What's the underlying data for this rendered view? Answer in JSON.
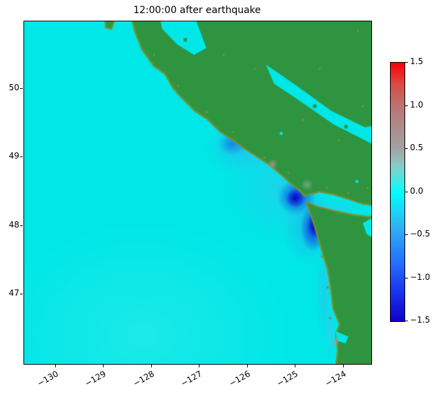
{
  "figure": {
    "title": "12:00:00 after earthquake"
  },
  "x_axis": {
    "tick_labels": [
      "−130",
      "−129",
      "−128",
      "−127",
      "−126",
      "−125",
      "−124"
    ],
    "tick_values": [
      -130,
      -129,
      -128,
      -127,
      -126,
      -125,
      -124
    ]
  },
  "y_axis": {
    "tick_labels": [
      "50",
      "49",
      "48",
      "47"
    ],
    "tick_values": [
      50,
      49,
      48,
      47
    ]
  },
  "colorbar": {
    "tick_labels": [
      "1.5",
      "1.0",
      "0.5",
      "0.0",
      "−0.5",
      "−1.0",
      "−1.5"
    ],
    "tick_values": [
      1.5,
      1.0,
      0.5,
      0.0,
      -0.5,
      -1.0,
      -1.5
    ],
    "vmin": -1.5,
    "vmax": 1.5,
    "gradient": [
      {
        "value": 1.5,
        "color": "#fb0007"
      },
      {
        "value": 1.25,
        "color": "#d94b43"
      },
      {
        "value": 1.0,
        "color": "#bb7470"
      },
      {
        "value": 0.75,
        "color": "#ac8d8b"
      },
      {
        "value": 0.5,
        "color": "#a2a2a2"
      },
      {
        "value": 0.3,
        "color": "#87cdc6"
      },
      {
        "value": 0.12,
        "color": "#3eeae6"
      },
      {
        "value": 0.0,
        "color": "#00ffff"
      },
      {
        "value": -0.4,
        "color": "#2fb3f3"
      },
      {
        "value": -0.8,
        "color": "#2472ff"
      },
      {
        "value": -1.15,
        "color": "#1b35ee"
      },
      {
        "value": -1.5,
        "color": "#0e00cc"
      }
    ]
  },
  "chart_data": {
    "type": "heatmap",
    "title": "12:00:00 after earthquake",
    "description": "Map of sea-surface elevation field along the Pacific Northwest coast (Vancouver Island and Washington): cyan ocean near 0, blue negative troughs hugging the coast and strait entrance, green land mask. Colorbar range −1.5 to 1.5.",
    "x_range": [
      -130.66,
      -123.42
    ],
    "y_range": [
      45.98,
      50.99
    ],
    "value_range": [
      -1.5,
      1.5
    ],
    "x_tick_values": [
      -130,
      -129,
      -128,
      -127,
      -126,
      -125,
      -124
    ],
    "y_tick_values": [
      50,
      49,
      48,
      47
    ],
    "colors": {
      "ocean": "#00e7e7",
      "land": "#2f9440",
      "coast": "#7d8f29",
      "channel_water": "#00e7e7"
    },
    "land_polygons": [
      {
        "name": "vancouver-island-and-mainland",
        "points": [
          [
            -128.52,
            51.3
          ],
          [
            -128.34,
            50.82
          ],
          [
            -128.2,
            50.58
          ],
          [
            -127.96,
            50.34
          ],
          [
            -127.72,
            50.22
          ],
          [
            -127.56,
            50.02
          ],
          [
            -127.44,
            49.92
          ],
          [
            -127.1,
            49.68
          ],
          [
            -126.84,
            49.56
          ],
          [
            -126.58,
            49.38
          ],
          [
            -126.32,
            49.26
          ],
          [
            -126.04,
            49.12
          ],
          [
            -125.82,
            49.02
          ],
          [
            -125.56,
            48.9
          ],
          [
            -125.32,
            48.76
          ],
          [
            -125.1,
            48.62
          ],
          [
            -124.92,
            48.52
          ],
          [
            -124.82,
            48.44
          ],
          [
            -124.5,
            48.5
          ],
          [
            -124.2,
            48.46
          ],
          [
            -123.85,
            48.38
          ],
          [
            -123.6,
            48.32
          ],
          [
            -123.3,
            48.3
          ],
          [
            -123.3,
            51.3
          ]
        ]
      },
      {
        "name": "olympic-peninsula-washington",
        "points": [
          [
            -124.78,
            48.35
          ],
          [
            -124.55,
            48.28
          ],
          [
            -124.2,
            48.22
          ],
          [
            -123.8,
            48.16
          ],
          [
            -123.3,
            48.12
          ],
          [
            -123.3,
            45.8
          ],
          [
            -124.18,
            45.8
          ],
          [
            -124.12,
            46.18
          ],
          [
            -124.16,
            46.42
          ],
          [
            -124.08,
            46.56
          ],
          [
            -124.22,
            46.8
          ],
          [
            -124.26,
            47.06
          ],
          [
            -124.33,
            47.36
          ],
          [
            -124.46,
            47.66
          ],
          [
            -124.56,
            47.9
          ],
          [
            -124.68,
            48.16
          ]
        ]
      },
      {
        "name": "north-islet",
        "points": [
          [
            -128.98,
            51.2
          ],
          [
            -128.8,
            51.2
          ],
          [
            -128.78,
            51.0
          ],
          [
            -128.84,
            50.88
          ],
          [
            -128.96,
            50.9
          ]
        ]
      }
    ],
    "water_overlays": [
      {
        "name": "strait-of-georgia",
        "points": [
          [
            -123.3,
            49.16
          ],
          [
            -124.2,
            49.48
          ],
          [
            -124.9,
            49.82
          ],
          [
            -125.45,
            50.08
          ],
          [
            -125.62,
            50.36
          ],
          [
            -125.0,
            50.06
          ],
          [
            -124.25,
            49.68
          ],
          [
            -123.55,
            49.44
          ],
          [
            -123.3,
            49.48
          ]
        ]
      },
      {
        "name": "queen-charlotte-strait",
        "points": [
          [
            -127.88,
            51.2
          ],
          [
            -127.18,
            51.2
          ],
          [
            -126.86,
            50.6
          ],
          [
            -127.12,
            50.5
          ],
          [
            -127.48,
            50.66
          ],
          [
            -127.78,
            50.88
          ]
        ]
      },
      {
        "name": "puget-sound",
        "points": [
          [
            -123.3,
            48.16
          ],
          [
            -123.6,
            48.04
          ],
          [
            -123.52,
            47.88
          ],
          [
            -123.3,
            47.78
          ]
        ]
      },
      {
        "name": "grays-harbor-inlet",
        "points": [
          [
            -124.16,
            46.46
          ],
          [
            -123.9,
            46.38
          ],
          [
            -123.96,
            46.28
          ],
          [
            -124.14,
            46.32
          ]
        ]
      }
    ],
    "ocean_anomalies": [
      {
        "lon": -128.2,
        "lat": 46.4,
        "rx": 3.2,
        "ry": 1.7,
        "color": "#aef7ef",
        "alpha": 0.16
      },
      {
        "lon": -125.3,
        "lat": 48.55,
        "rx": 1.15,
        "ry": 0.8,
        "color": "#43b9ef",
        "alpha": 0.4
      },
      {
        "lon": -126.1,
        "lat": 49.15,
        "rx": 0.8,
        "ry": 0.42,
        "color": "#3fa9ec",
        "alpha": 0.5
      },
      {
        "lon": -126.32,
        "lat": 49.2,
        "rx": 0.3,
        "ry": 0.18,
        "color": "#1565e8",
        "alpha": 0.7
      },
      {
        "lon": -124.98,
        "lat": 48.42,
        "rx": 0.4,
        "ry": 0.27,
        "color": "#0d22dd",
        "alpha": 0.85
      },
      {
        "lon": -125.0,
        "lat": 48.4,
        "rx": 0.2,
        "ry": 0.14,
        "color": "#0800c8",
        "alpha": 0.95
      },
      {
        "lon": -124.74,
        "lat": 47.98,
        "rx": 0.52,
        "ry": 0.56,
        "color": "#2f9ae8",
        "alpha": 0.5
      },
      {
        "lon": -124.63,
        "lat": 47.97,
        "rx": 0.27,
        "ry": 0.35,
        "color": "#0a18dd",
        "alpha": 0.85
      },
      {
        "lon": -124.6,
        "lat": 48.03,
        "rx": 0.14,
        "ry": 0.2,
        "color": "#0600c5",
        "alpha": 0.95
      },
      {
        "lon": -124.4,
        "lat": 47.1,
        "rx": 0.17,
        "ry": 0.8,
        "color": "#46b0e9",
        "alpha": 0.45
      },
      {
        "lon": -124.28,
        "lat": 46.45,
        "rx": 0.13,
        "ry": 0.45,
        "color": "#55bdec",
        "alpha": 0.4
      },
      {
        "lon": -124.2,
        "lat": 48.26,
        "rx": 0.6,
        "ry": 0.11,
        "color": "#49c0ec",
        "alpha": 0.45
      }
    ],
    "surface_spots": [
      {
        "lon": -125.48,
        "lat": 48.9,
        "rx": 0.11,
        "ry": 0.08,
        "color": "#b29090",
        "alpha": 0.9
      },
      {
        "lon": -124.76,
        "lat": 48.6,
        "rx": 0.13,
        "ry": 0.09,
        "color": "#9fb8b4",
        "alpha": 0.55
      },
      {
        "lon": -124.17,
        "lat": 46.3,
        "rx": 0.08,
        "ry": 0.06,
        "color": "#c98b8b",
        "alpha": 0.95
      }
    ],
    "land_speckles": [
      [
        -127.95,
        50.5
      ],
      [
        -127.45,
        50.05
      ],
      [
        -126.85,
        49.66
      ],
      [
        -126.3,
        49.37
      ],
      [
        -125.65,
        49.0
      ],
      [
        -125.15,
        48.78
      ],
      [
        -124.35,
        48.56
      ],
      [
        -123.9,
        48.48
      ],
      [
        -124.45,
        47.55
      ],
      [
        -124.33,
        47.1
      ],
      [
        -124.28,
        46.65
      ],
      [
        -125.85,
        50.3
      ],
      [
        -124.85,
        49.55
      ],
      [
        -124.1,
        49.25
      ],
      [
        -126.5,
        50.5
      ],
      [
        -123.7,
        50.85
      ],
      [
        -124.5,
        50.3
      ],
      [
        -123.6,
        49.75
      ],
      [
        -123.5,
        48.55
      ]
    ],
    "lakes": [
      [
        -125.3,
        49.35
      ],
      [
        -123.72,
        48.65
      ]
    ],
    "islets": [
      [
        -124.6,
        49.75
      ],
      [
        -123.95,
        49.45
      ],
      [
        -127.3,
        50.72
      ]
    ]
  }
}
